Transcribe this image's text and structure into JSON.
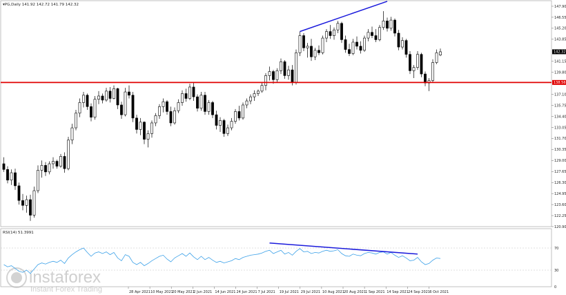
{
  "header": {
    "symbol_line": "▾PG,Daily 141.92 142.72 141.79 142.32",
    "rsi_line": "RSI(14) 51.3991"
  },
  "price_axis": {
    "labels": [
      "147.90",
      "146.55",
      "145.20",
      "143.85",
      "141.15",
      "139.80",
      "137.10",
      "135.75",
      "134.40",
      "133.05",
      "131.70",
      "130.35",
      "129.00",
      "127.65",
      "126.30",
      "124.95",
      "123.60",
      "122.25",
      "120.90"
    ],
    "current_price_label": "142.32",
    "support_label": "138.56"
  },
  "rsi_axis": {
    "labels": [
      "70",
      "30",
      "0"
    ]
  },
  "time_axis": {
    "labels": [
      "28 Apr 2021",
      "10 May 2021",
      "20 May 2021",
      "2 Jun 2021",
      "14 Jun 2021",
      "24 Jun 2021",
      "7 Jul 2021",
      "19 Jul 2021",
      "29 Jul 2021",
      "10 Aug 2021",
      "20 Aug 2021",
      "1 Sep 2021",
      "14 Sep 2021",
      "24 Sep 2021",
      "6 Oct 2021"
    ]
  },
  "watermark": {
    "brand": "instaforex",
    "tagline": "Instant Forex Trading"
  },
  "colors": {
    "support_line": "#e00000",
    "trend_line": "#1a1adc",
    "rsi_line": "#3aa0e8",
    "candle_bull": "#ffffff",
    "candle_bear": "#000000",
    "label_bg_red": "#e00000",
    "label_bg_current": "#000000"
  },
  "chart_data": {
    "type": "candlestick",
    "price_range": [
      120.9,
      148.5
    ],
    "support_level": 138.56,
    "current_price": 142.32,
    "last_ohlc": {
      "open": 141.92,
      "high": 142.72,
      "low": 141.79,
      "close": 142.32
    },
    "ohlc": [
      {
        "o": 128.6,
        "h": 129.4,
        "l": 127.6,
        "c": 127.9
      },
      {
        "o": 127.9,
        "h": 128.3,
        "l": 126.2,
        "c": 126.6
      },
      {
        "o": 126.6,
        "h": 127.9,
        "l": 126.0,
        "c": 127.5
      },
      {
        "o": 127.5,
        "h": 128.0,
        "l": 125.4,
        "c": 125.9
      },
      {
        "o": 125.9,
        "h": 126.3,
        "l": 123.6,
        "c": 124.1
      },
      {
        "o": 124.1,
        "h": 124.9,
        "l": 122.9,
        "c": 123.5
      },
      {
        "o": 123.5,
        "h": 124.7,
        "l": 122.6,
        "c": 124.2
      },
      {
        "o": 124.2,
        "h": 124.8,
        "l": 121.6,
        "c": 122.3
      },
      {
        "o": 122.3,
        "h": 125.8,
        "l": 122.0,
        "c": 125.3
      },
      {
        "o": 125.3,
        "h": 128.4,
        "l": 125.0,
        "c": 127.8
      },
      {
        "o": 127.8,
        "h": 129.0,
        "l": 126.9,
        "c": 128.4
      },
      {
        "o": 128.4,
        "h": 128.8,
        "l": 127.1,
        "c": 127.6
      },
      {
        "o": 127.6,
        "h": 128.9,
        "l": 127.3,
        "c": 128.6
      },
      {
        "o": 128.6,
        "h": 129.4,
        "l": 128.0,
        "c": 128.9
      },
      {
        "o": 128.9,
        "h": 129.1,
        "l": 128.0,
        "c": 128.3
      },
      {
        "o": 128.3,
        "h": 129.8,
        "l": 128.1,
        "c": 129.5
      },
      {
        "o": 129.5,
        "h": 130.0,
        "l": 127.5,
        "c": 128.0
      },
      {
        "o": 128.0,
        "h": 131.9,
        "l": 127.8,
        "c": 131.5
      },
      {
        "o": 131.5,
        "h": 133.5,
        "l": 131.0,
        "c": 133.0
      },
      {
        "o": 133.0,
        "h": 135.2,
        "l": 132.7,
        "c": 134.8
      },
      {
        "o": 134.8,
        "h": 136.6,
        "l": 134.3,
        "c": 136.1
      },
      {
        "o": 136.1,
        "h": 137.4,
        "l": 135.5,
        "c": 137.0
      },
      {
        "o": 137.0,
        "h": 137.2,
        "l": 135.2,
        "c": 135.6
      },
      {
        "o": 135.6,
        "h": 136.0,
        "l": 133.8,
        "c": 134.3
      },
      {
        "o": 134.3,
        "h": 136.9,
        "l": 134.0,
        "c": 136.5
      },
      {
        "o": 136.5,
        "h": 137.5,
        "l": 135.9,
        "c": 136.9
      },
      {
        "o": 136.9,
        "h": 137.2,
        "l": 136.0,
        "c": 136.4
      },
      {
        "o": 136.4,
        "h": 137.9,
        "l": 136.2,
        "c": 137.5
      },
      {
        "o": 137.5,
        "h": 138.0,
        "l": 136.1,
        "c": 136.6
      },
      {
        "o": 136.6,
        "h": 138.2,
        "l": 136.5,
        "c": 137.8
      },
      {
        "o": 137.8,
        "h": 137.9,
        "l": 135.3,
        "c": 135.8
      },
      {
        "o": 135.8,
        "h": 136.2,
        "l": 134.1,
        "c": 134.6
      },
      {
        "o": 134.6,
        "h": 137.9,
        "l": 134.4,
        "c": 137.4
      },
      {
        "o": 137.4,
        "h": 138.2,
        "l": 136.6,
        "c": 137.0
      },
      {
        "o": 137.0,
        "h": 137.4,
        "l": 133.7,
        "c": 134.2
      },
      {
        "o": 134.2,
        "h": 134.6,
        "l": 132.3,
        "c": 132.8
      },
      {
        "o": 132.8,
        "h": 134.2,
        "l": 132.1,
        "c": 133.7
      },
      {
        "o": 133.7,
        "h": 133.8,
        "l": 131.0,
        "c": 131.6
      },
      {
        "o": 131.6,
        "h": 132.7,
        "l": 130.6,
        "c": 132.3
      },
      {
        "o": 132.3,
        "h": 133.9,
        "l": 131.8,
        "c": 133.6
      },
      {
        "o": 133.6,
        "h": 134.8,
        "l": 133.2,
        "c": 134.5
      },
      {
        "o": 134.5,
        "h": 135.9,
        "l": 134.1,
        "c": 135.6
      },
      {
        "o": 135.6,
        "h": 136.6,
        "l": 134.9,
        "c": 136.2
      },
      {
        "o": 136.2,
        "h": 136.4,
        "l": 134.6,
        "c": 135.0
      },
      {
        "o": 135.0,
        "h": 135.6,
        "l": 133.2,
        "c": 133.6
      },
      {
        "o": 133.6,
        "h": 135.5,
        "l": 133.4,
        "c": 135.1
      },
      {
        "o": 135.1,
        "h": 136.5,
        "l": 134.8,
        "c": 136.1
      },
      {
        "o": 136.1,
        "h": 137.6,
        "l": 135.7,
        "c": 137.2
      },
      {
        "o": 137.2,
        "h": 137.8,
        "l": 136.2,
        "c": 136.6
      },
      {
        "o": 136.6,
        "h": 138.4,
        "l": 136.4,
        "c": 138.0
      },
      {
        "o": 138.0,
        "h": 138.5,
        "l": 136.3,
        "c": 136.8
      },
      {
        "o": 136.8,
        "h": 137.1,
        "l": 135.0,
        "c": 135.4
      },
      {
        "o": 135.4,
        "h": 137.4,
        "l": 135.1,
        "c": 137.0
      },
      {
        "o": 137.0,
        "h": 137.4,
        "l": 134.6,
        "c": 135.0
      },
      {
        "o": 135.0,
        "h": 136.4,
        "l": 134.6,
        "c": 136.1
      },
      {
        "o": 136.1,
        "h": 136.3,
        "l": 134.2,
        "c": 134.6
      },
      {
        "o": 134.6,
        "h": 135.1,
        "l": 132.8,
        "c": 133.3
      },
      {
        "o": 133.3,
        "h": 134.3,
        "l": 132.5,
        "c": 133.9
      },
      {
        "o": 133.9,
        "h": 134.1,
        "l": 131.9,
        "c": 132.3
      },
      {
        "o": 132.3,
        "h": 133.4,
        "l": 132.0,
        "c": 133.0
      },
      {
        "o": 133.0,
        "h": 134.2,
        "l": 132.7,
        "c": 133.8
      },
      {
        "o": 133.8,
        "h": 135.3,
        "l": 133.5,
        "c": 135.0
      },
      {
        "o": 135.0,
        "h": 135.7,
        "l": 133.9,
        "c": 134.2
      },
      {
        "o": 134.2,
        "h": 136.1,
        "l": 134.0,
        "c": 135.8
      },
      {
        "o": 135.8,
        "h": 136.6,
        "l": 135.4,
        "c": 136.3
      },
      {
        "o": 136.3,
        "h": 137.1,
        "l": 135.9,
        "c": 136.8
      },
      {
        "o": 136.8,
        "h": 137.6,
        "l": 136.3,
        "c": 137.2
      },
      {
        "o": 137.2,
        "h": 137.7,
        "l": 136.9,
        "c": 137.5
      },
      {
        "o": 137.5,
        "h": 138.6,
        "l": 137.3,
        "c": 138.2
      },
      {
        "o": 138.2,
        "h": 139.7,
        "l": 137.6,
        "c": 139.4
      },
      {
        "o": 139.4,
        "h": 140.5,
        "l": 138.8,
        "c": 139.9
      },
      {
        "o": 139.9,
        "h": 140.1,
        "l": 138.4,
        "c": 138.9
      },
      {
        "o": 138.9,
        "h": 140.3,
        "l": 138.6,
        "c": 140.0
      },
      {
        "o": 140.0,
        "h": 141.5,
        "l": 139.6,
        "c": 141.1
      },
      {
        "o": 141.1,
        "h": 141.3,
        "l": 139.0,
        "c": 139.4
      },
      {
        "o": 139.4,
        "h": 140.6,
        "l": 138.9,
        "c": 140.1
      },
      {
        "o": 140.1,
        "h": 140.7,
        "l": 138.2,
        "c": 138.6
      },
      {
        "o": 138.6,
        "h": 142.6,
        "l": 138.3,
        "c": 142.2
      },
      {
        "o": 142.2,
        "h": 144.8,
        "l": 141.8,
        "c": 144.3
      },
      {
        "o": 144.3,
        "h": 144.6,
        "l": 142.4,
        "c": 142.8
      },
      {
        "o": 142.8,
        "h": 143.4,
        "l": 141.6,
        "c": 143.0
      },
      {
        "o": 143.0,
        "h": 143.9,
        "l": 141.2,
        "c": 141.7
      },
      {
        "o": 141.7,
        "h": 142.8,
        "l": 141.3,
        "c": 142.5
      },
      {
        "o": 142.5,
        "h": 143.1,
        "l": 141.9,
        "c": 142.2
      },
      {
        "o": 142.2,
        "h": 144.3,
        "l": 142.0,
        "c": 144.0
      },
      {
        "o": 144.0,
        "h": 145.1,
        "l": 143.5,
        "c": 144.8
      },
      {
        "o": 144.8,
        "h": 145.6,
        "l": 143.9,
        "c": 144.3
      },
      {
        "o": 144.3,
        "h": 145.3,
        "l": 143.8,
        "c": 145.0
      },
      {
        "o": 145.0,
        "h": 146.1,
        "l": 144.6,
        "c": 145.8
      },
      {
        "o": 145.8,
        "h": 146.0,
        "l": 143.4,
        "c": 143.8
      },
      {
        "o": 143.8,
        "h": 144.3,
        "l": 142.2,
        "c": 142.6
      },
      {
        "o": 142.6,
        "h": 143.3,
        "l": 141.8,
        "c": 142.1
      },
      {
        "o": 142.1,
        "h": 143.9,
        "l": 141.9,
        "c": 143.5
      },
      {
        "o": 143.5,
        "h": 144.2,
        "l": 142.6,
        "c": 143.0
      },
      {
        "o": 143.0,
        "h": 143.6,
        "l": 142.1,
        "c": 142.5
      },
      {
        "o": 142.5,
        "h": 144.3,
        "l": 142.3,
        "c": 144.0
      },
      {
        "o": 144.0,
        "h": 145.1,
        "l": 143.6,
        "c": 144.7
      },
      {
        "o": 144.7,
        "h": 145.4,
        "l": 144.0,
        "c": 144.3
      },
      {
        "o": 144.3,
        "h": 145.1,
        "l": 143.5,
        "c": 143.8
      },
      {
        "o": 143.8,
        "h": 145.6,
        "l": 143.6,
        "c": 145.3
      },
      {
        "o": 145.3,
        "h": 147.3,
        "l": 145.0,
        "c": 146.1
      },
      {
        "o": 146.1,
        "h": 146.5,
        "l": 144.8,
        "c": 145.2
      },
      {
        "o": 145.2,
        "h": 146.6,
        "l": 144.9,
        "c": 146.2
      },
      {
        "o": 146.2,
        "h": 146.4,
        "l": 144.2,
        "c": 144.6
      },
      {
        "o": 144.6,
        "h": 145.0,
        "l": 142.5,
        "c": 142.9
      },
      {
        "o": 142.9,
        "h": 144.1,
        "l": 142.6,
        "c": 143.7
      },
      {
        "o": 143.7,
        "h": 143.9,
        "l": 141.6,
        "c": 142.0
      },
      {
        "o": 142.0,
        "h": 142.4,
        "l": 139.6,
        "c": 140.0
      },
      {
        "o": 140.0,
        "h": 140.7,
        "l": 139.1,
        "c": 140.4
      },
      {
        "o": 140.4,
        "h": 142.4,
        "l": 140.1,
        "c": 142.0
      },
      {
        "o": 142.0,
        "h": 142.2,
        "l": 139.2,
        "c": 139.6
      },
      {
        "o": 139.6,
        "h": 139.9,
        "l": 138.1,
        "c": 138.5
      },
      {
        "o": 138.5,
        "h": 139.1,
        "l": 137.5,
        "c": 138.8
      },
      {
        "o": 138.8,
        "h": 141.4,
        "l": 138.5,
        "c": 141.0
      },
      {
        "o": 141.0,
        "h": 142.6,
        "l": 140.8,
        "c": 142.2
      },
      {
        "o": 141.92,
        "h": 142.72,
        "l": 141.79,
        "c": 142.32
      }
    ],
    "rsi": {
      "range": [
        0,
        100
      ],
      "levels": [
        70,
        30
      ],
      "current": 51.3991,
      "values": [
        40,
        36,
        38,
        33,
        28,
        26,
        30,
        24,
        32,
        40,
        43,
        41,
        44,
        46,
        44,
        48,
        42,
        52,
        58,
        63,
        67,
        70,
        62,
        55,
        61,
        63,
        60,
        63,
        58,
        62,
        52,
        47,
        58,
        55,
        44,
        40,
        44,
        38,
        42,
        47,
        51,
        55,
        57,
        50,
        45,
        52,
        56,
        60,
        55,
        61,
        54,
        49,
        55,
        49,
        53,
        48,
        44,
        46,
        43,
        45,
        47,
        51,
        49,
        53,
        55,
        57,
        58,
        59,
        61,
        64,
        66,
        60,
        63,
        66,
        59,
        62,
        57,
        64,
        69,
        63,
        64,
        60,
        62,
        61,
        64,
        66,
        64,
        65,
        67,
        60,
        56,
        55,
        59,
        57,
        56,
        60,
        62,
        61,
        59,
        62,
        63,
        59,
        62,
        57,
        53,
        56,
        52,
        47,
        48,
        53,
        45,
        40,
        42,
        48,
        52,
        51
      ]
    },
    "annotations": {
      "price_trendline": {
        "from": {
          "i": 78,
          "price": 144.8
        },
        "to": {
          "i": 101,
          "price": 148.5
        }
      },
      "rsi_trendline": {
        "from": {
          "i": 70,
          "rsi": 79
        },
        "to": {
          "i": 109,
          "rsi": 59
        }
      }
    }
  }
}
